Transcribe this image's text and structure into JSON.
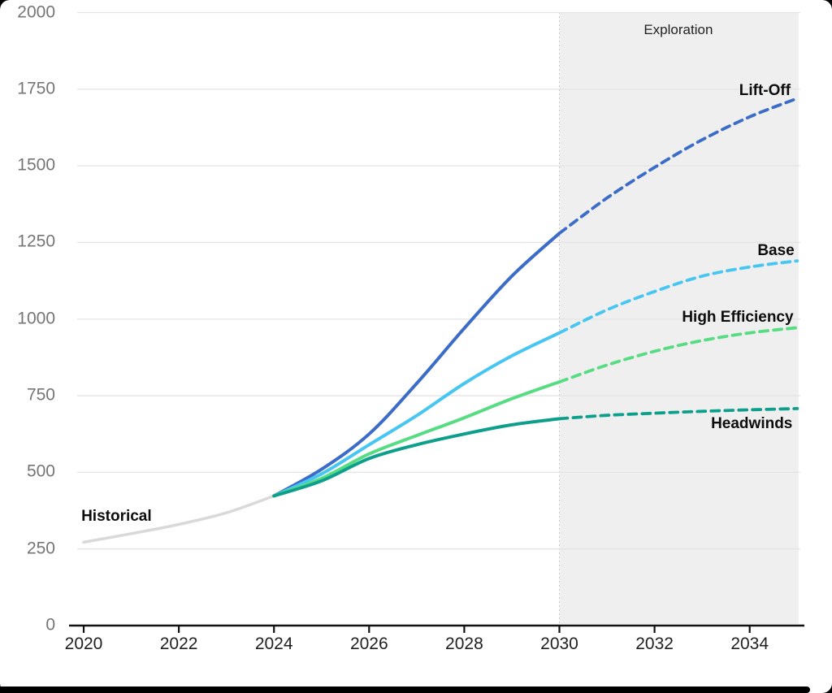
{
  "frame": {
    "background_color": "#000000",
    "canvas_color": "#ffffff"
  },
  "chart_data": {
    "type": "line",
    "title": "",
    "xlabel": "",
    "ylabel": "",
    "x_range": [
      2020,
      2035
    ],
    "y_range": [
      0,
      2000
    ],
    "x_ticks": [
      "2020",
      "2022",
      "2024",
      "2026",
      "2028",
      "2030",
      "2032",
      "2034"
    ],
    "x_tick_years": [
      2020,
      2022,
      2024,
      2026,
      2028,
      2030,
      2032,
      2034
    ],
    "y_ticks": [
      "0",
      "250",
      "500",
      "750",
      "1000",
      "1250",
      "1500",
      "1750",
      "2000"
    ],
    "y_tick_values": [
      0,
      250,
      500,
      750,
      1000,
      1250,
      1500,
      1750,
      2000
    ],
    "grid": "horizontal",
    "gridline_color": "#e4e4e4",
    "axis_color": "#111111",
    "shaded_region": {
      "x_start": 2030,
      "x_end": 2035,
      "fill": "#efefef",
      "boundary_style": "dotted",
      "boundary_color": "#c8c8c8"
    },
    "series": [
      {
        "name": "Historical",
        "color": "#d9d9d9",
        "segments": [
          {
            "style": "solid",
            "points": [
              [
                2020,
                272
              ],
              [
                2021,
                300
              ],
              [
                2022,
                330
              ],
              [
                2023,
                368
              ],
              [
                2024,
                423
              ]
            ]
          }
        ]
      },
      {
        "name": "Lift-Off",
        "color": "#3b6cc7",
        "segments": [
          {
            "style": "solid",
            "points": [
              [
                2024,
                423
              ],
              [
                2025,
                510
              ],
              [
                2026,
                625
              ],
              [
                2027,
                790
              ],
              [
                2028,
                970
              ],
              [
                2029,
                1140
              ],
              [
                2030,
                1280
              ]
            ]
          },
          {
            "style": "dashed",
            "points": [
              [
                2030,
                1280
              ],
              [
                2031,
                1395
              ],
              [
                2032,
                1495
              ],
              [
                2033,
                1585
              ],
              [
                2034,
                1660
              ],
              [
                2035,
                1720
              ]
            ]
          }
        ]
      },
      {
        "name": "Base",
        "color": "#47c6f2",
        "segments": [
          {
            "style": "solid",
            "points": [
              [
                2024,
                423
              ],
              [
                2025,
                495
              ],
              [
                2026,
                590
              ],
              [
                2027,
                685
              ],
              [
                2028,
                790
              ],
              [
                2029,
                880
              ],
              [
                2030,
                955
              ]
            ]
          },
          {
            "style": "dashed",
            "points": [
              [
                2030,
                955
              ],
              [
                2031,
                1030
              ],
              [
                2032,
                1090
              ],
              [
                2033,
                1140
              ],
              [
                2034,
                1170
              ],
              [
                2035,
                1190
              ]
            ]
          }
        ]
      },
      {
        "name": "High Efficiency",
        "color": "#58dc83",
        "segments": [
          {
            "style": "solid",
            "points": [
              [
                2024,
                423
              ],
              [
                2025,
                480
              ],
              [
                2026,
                560
              ],
              [
                2027,
                620
              ],
              [
                2028,
                678
              ],
              [
                2029,
                740
              ],
              [
                2030,
                795
              ]
            ]
          },
          {
            "style": "dashed",
            "points": [
              [
                2030,
                795
              ],
              [
                2031,
                850
              ],
              [
                2032,
                895
              ],
              [
                2033,
                930
              ],
              [
                2034,
                955
              ],
              [
                2035,
                972
              ]
            ]
          }
        ]
      },
      {
        "name": "Headwinds",
        "color": "#0e9f8c",
        "segments": [
          {
            "style": "solid",
            "points": [
              [
                2024,
                423
              ],
              [
                2025,
                472
              ],
              [
                2026,
                545
              ],
              [
                2027,
                590
              ],
              [
                2028,
                625
              ],
              [
                2029,
                655
              ],
              [
                2030,
                675
              ]
            ]
          },
          {
            "style": "dashed",
            "points": [
              [
                2030,
                675
              ],
              [
                2031,
                686
              ],
              [
                2032,
                693
              ],
              [
                2033,
                699
              ],
              [
                2034,
                704
              ],
              [
                2035,
                708
              ]
            ]
          }
        ]
      }
    ],
    "annotations": [
      {
        "text": "Exploration",
        "x": 2032.5,
        "y": 1944,
        "align": "center",
        "kind": "region"
      },
      {
        "text": "Lift-Off",
        "x": 2034.86,
        "y": 1745,
        "align": "right",
        "kind": "line"
      },
      {
        "text": "Base",
        "x": 2034.94,
        "y": 1223,
        "align": "right",
        "kind": "line"
      },
      {
        "text": "High Efficiency",
        "x": 2034.92,
        "y": 1005,
        "align": "right",
        "kind": "line"
      },
      {
        "text": "Headwinds",
        "x": 2034.9,
        "y": 658,
        "align": "right",
        "kind": "line"
      },
      {
        "text": "Historical",
        "x": 2019.95,
        "y": 355,
        "align": "left",
        "kind": "line"
      }
    ],
    "legend": "direct-labels"
  }
}
